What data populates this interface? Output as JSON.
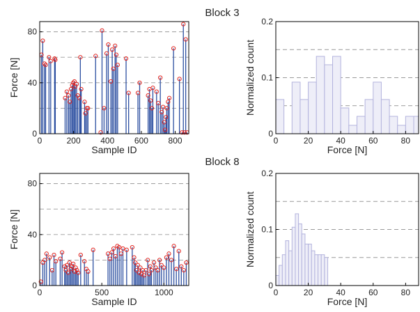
{
  "chart_data": [
    {
      "type": "stem",
      "panel": "block3-samples",
      "block_title": "Block 3",
      "xlabel": "Sample ID",
      "ylabel": "Force [N]",
      "xlim": [
        0,
        880
      ],
      "ylim": [
        0,
        88
      ],
      "xticks": [
        0,
        200,
        400,
        600,
        800
      ],
      "yticks": [
        0,
        40,
        80
      ],
      "grid_y": [
        20,
        40,
        60,
        80
      ],
      "line_color": "#2b4ea0",
      "marker_color": "#e0231f",
      "peaks": [
        {
          "x": 10,
          "y": 62
        },
        {
          "x": 18,
          "y": 73
        },
        {
          "x": 28,
          "y": 55
        },
        {
          "x": 35,
          "y": 54
        },
        {
          "x": 55,
          "y": 60
        },
        {
          "x": 65,
          "y": 57
        },
        {
          "x": 88,
          "y": 59
        },
        {
          "x": 92,
          "y": 58
        },
        {
          "x": 150,
          "y": 28
        },
        {
          "x": 160,
          "y": 33
        },
        {
          "x": 170,
          "y": 30
        },
        {
          "x": 178,
          "y": 25
        },
        {
          "x": 185,
          "y": 35
        },
        {
          "x": 192,
          "y": 38
        },
        {
          "x": 198,
          "y": 40
        },
        {
          "x": 205,
          "y": 41
        },
        {
          "x": 210,
          "y": 37
        },
        {
          "x": 218,
          "y": 39
        },
        {
          "x": 225,
          "y": 30
        },
        {
          "x": 235,
          "y": 28
        },
        {
          "x": 240,
          "y": 60
        },
        {
          "x": 245,
          "y": 35
        },
        {
          "x": 265,
          "y": 25
        },
        {
          "x": 270,
          "y": 16
        },
        {
          "x": 278,
          "y": 20
        },
        {
          "x": 285,
          "y": 20
        },
        {
          "x": 330,
          "y": 61
        },
        {
          "x": 360,
          "y": 1
        },
        {
          "x": 368,
          "y": 81
        },
        {
          "x": 380,
          "y": 20
        },
        {
          "x": 395,
          "y": 63
        },
        {
          "x": 405,
          "y": 70
        },
        {
          "x": 420,
          "y": 41
        },
        {
          "x": 428,
          "y": 66
        },
        {
          "x": 435,
          "y": 51
        },
        {
          "x": 445,
          "y": 69
        },
        {
          "x": 452,
          "y": 62
        },
        {
          "x": 460,
          "y": 54
        },
        {
          "x": 510,
          "y": 59
        },
        {
          "x": 525,
          "y": 32
        },
        {
          "x": 580,
          "y": 32
        },
        {
          "x": 590,
          "y": 40
        },
        {
          "x": 640,
          "y": 30
        },
        {
          "x": 648,
          "y": 35
        },
        {
          "x": 655,
          "y": 26
        },
        {
          "x": 662,
          "y": 20
        },
        {
          "x": 668,
          "y": 36
        },
        {
          "x": 690,
          "y": 33
        },
        {
          "x": 700,
          "y": 24
        },
        {
          "x": 712,
          "y": 44
        },
        {
          "x": 720,
          "y": 17
        },
        {
          "x": 728,
          "y": 21
        },
        {
          "x": 735,
          "y": 9
        },
        {
          "x": 740,
          "y": 3
        },
        {
          "x": 745,
          "y": 13
        },
        {
          "x": 750,
          "y": 20
        },
        {
          "x": 758,
          "y": 25
        },
        {
          "x": 765,
          "y": 28
        },
        {
          "x": 790,
          "y": 67
        },
        {
          "x": 825,
          "y": 43
        },
        {
          "x": 840,
          "y": 1
        },
        {
          "x": 848,
          "y": 86
        },
        {
          "x": 855,
          "y": 1
        },
        {
          "x": 862,
          "y": 74
        },
        {
          "x": 870,
          "y": 1
        }
      ]
    },
    {
      "type": "bar",
      "panel": "block3-histogram",
      "xlabel": "Force [N]",
      "ylabel": "Normalized count",
      "xlim": [
        0,
        88
      ],
      "ylim": [
        0,
        0.2
      ],
      "xticks": [
        0,
        20,
        40,
        60,
        80
      ],
      "yticks": [
        0,
        0.1,
        0.2
      ],
      "ytick_labels": [
        "0",
        "0.1",
        "0.2"
      ],
      "grid_y": [
        0.05,
        0.1,
        0.15
      ],
      "bar_fill": "#eeeef8",
      "bar_edge": "#b3b3dd",
      "bin_width": 5,
      "bin_centers": [
        2.5,
        7.5,
        12.5,
        17.5,
        22.5,
        27.5,
        32.5,
        37.5,
        42.5,
        47.5,
        52.5,
        57.5,
        62.5,
        67.5,
        72.5,
        77.5,
        82.5,
        87.5
      ],
      "values": [
        0.061,
        0.0,
        0.092,
        0.061,
        0.092,
        0.138,
        0.123,
        0.138,
        0.046,
        0.015,
        0.031,
        0.061,
        0.092,
        0.061,
        0.031,
        0.015,
        0.031,
        0.031
      ]
    },
    {
      "type": "stem",
      "panel": "block8-samples",
      "block_title": "Block 8",
      "xlabel": "Sample ID",
      "ylabel": "Force [N]",
      "xlim": [
        0,
        1200
      ],
      "ylim": [
        0,
        88
      ],
      "xticks": [
        0,
        500,
        1000
      ],
      "yticks": [
        0,
        40,
        80
      ],
      "grid_y": [
        20,
        40,
        60,
        80
      ],
      "line_color": "#2b4ea0",
      "marker_color": "#e0231f",
      "peaks": [
        {
          "x": 10,
          "y": 3
        },
        {
          "x": 25,
          "y": 18
        },
        {
          "x": 40,
          "y": 20
        },
        {
          "x": 55,
          "y": 25
        },
        {
          "x": 80,
          "y": 22
        },
        {
          "x": 100,
          "y": 12
        },
        {
          "x": 115,
          "y": 24
        },
        {
          "x": 130,
          "y": 19
        },
        {
          "x": 165,
          "y": 21
        },
        {
          "x": 180,
          "y": 26
        },
        {
          "x": 200,
          "y": 15
        },
        {
          "x": 210,
          "y": 12
        },
        {
          "x": 220,
          "y": 16
        },
        {
          "x": 230,
          "y": 10
        },
        {
          "x": 240,
          "y": 18
        },
        {
          "x": 250,
          "y": 13
        },
        {
          "x": 260,
          "y": 15
        },
        {
          "x": 270,
          "y": 17
        },
        {
          "x": 280,
          "y": 11
        },
        {
          "x": 290,
          "y": 14
        },
        {
          "x": 300,
          "y": 12
        },
        {
          "x": 310,
          "y": 10
        },
        {
          "x": 330,
          "y": 24
        },
        {
          "x": 360,
          "y": 19
        },
        {
          "x": 375,
          "y": 13
        },
        {
          "x": 390,
          "y": 11
        },
        {
          "x": 430,
          "y": 28
        },
        {
          "x": 550,
          "y": 25
        },
        {
          "x": 565,
          "y": 21
        },
        {
          "x": 580,
          "y": 26
        },
        {
          "x": 595,
          "y": 29
        },
        {
          "x": 610,
          "y": 23
        },
        {
          "x": 625,
          "y": 31
        },
        {
          "x": 640,
          "y": 30
        },
        {
          "x": 655,
          "y": 25
        },
        {
          "x": 670,
          "y": 29
        },
        {
          "x": 700,
          "y": 28
        },
        {
          "x": 745,
          "y": 30
        },
        {
          "x": 760,
          "y": 22
        },
        {
          "x": 770,
          "y": 18
        },
        {
          "x": 780,
          "y": 12
        },
        {
          "x": 790,
          "y": 16
        },
        {
          "x": 800,
          "y": 10
        },
        {
          "x": 810,
          "y": 14
        },
        {
          "x": 820,
          "y": 9
        },
        {
          "x": 830,
          "y": 12
        },
        {
          "x": 840,
          "y": 8
        },
        {
          "x": 855,
          "y": 12
        },
        {
          "x": 870,
          "y": 20
        },
        {
          "x": 880,
          "y": 9
        },
        {
          "x": 890,
          "y": 15
        },
        {
          "x": 900,
          "y": 12
        },
        {
          "x": 920,
          "y": 18
        },
        {
          "x": 935,
          "y": 14
        },
        {
          "x": 950,
          "y": 12
        },
        {
          "x": 965,
          "y": 20
        },
        {
          "x": 980,
          "y": 16
        },
        {
          "x": 1000,
          "y": 14
        },
        {
          "x": 1020,
          "y": 22
        },
        {
          "x": 1040,
          "y": 25
        },
        {
          "x": 1060,
          "y": 20
        },
        {
          "x": 1080,
          "y": 31
        },
        {
          "x": 1100,
          "y": 13
        },
        {
          "x": 1120,
          "y": 27
        },
        {
          "x": 1140,
          "y": 15
        },
        {
          "x": 1160,
          "y": 12
        },
        {
          "x": 1180,
          "y": 18
        }
      ]
    },
    {
      "type": "bar",
      "panel": "block8-histogram",
      "xlabel": "Force [N]",
      "ylabel": "Normalized count",
      "xlim": [
        0,
        88
      ],
      "ylim": [
        0,
        0.2
      ],
      "xticks": [
        0,
        20,
        40,
        60,
        80
      ],
      "yticks": [
        0,
        0.1,
        0.2
      ],
      "ytick_labels": [
        "0",
        "0.1",
        "0.2"
      ],
      "grid_y": [
        0.05,
        0.1,
        0.15
      ],
      "bar_fill": "#eeeef8",
      "bar_edge": "#b3b3dd",
      "bin_width": 2,
      "bin_centers": [
        1,
        3,
        5,
        7,
        9,
        11,
        13,
        15,
        17,
        19,
        21,
        23,
        25,
        27,
        29,
        31
      ],
      "values": [
        0.018,
        0.036,
        0.055,
        0.08,
        0.062,
        0.104,
        0.128,
        0.11,
        0.092,
        0.074,
        0.074,
        0.062,
        0.055,
        0.055,
        0.055,
        0.05
      ]
    }
  ]
}
